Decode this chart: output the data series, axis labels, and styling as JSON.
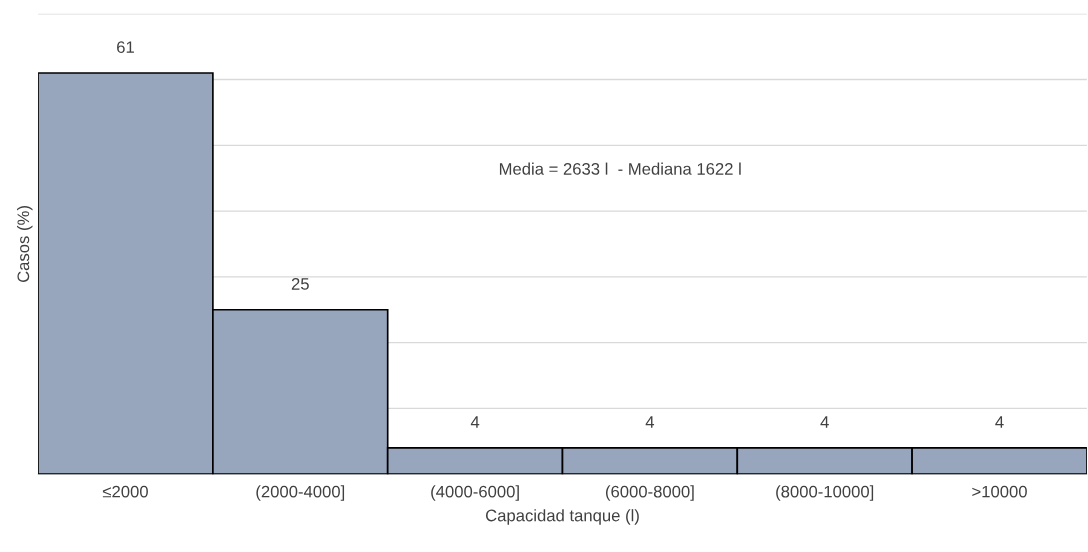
{
  "chart_data": {
    "type": "bar",
    "categories": [
      "≤2000",
      "(2000-4000]",
      "(4000-6000]",
      "(6000-8000]",
      "(8000-10000]",
      ">10000"
    ],
    "values": [
      61,
      25,
      4,
      4,
      4,
      4
    ],
    "color": "#97a6bd",
    "xlabel": "Capacidad tanque (l)",
    "ylabel": "Casos (%)",
    "annotations": [
      "Media = 2633 l  - Mediana 1622 l"
    ],
    "ylim": [
      0,
      70
    ],
    "yticks": [
      {
        "value": 0,
        "label": null
      },
      {
        "value": 10,
        "label": null
      },
      {
        "value": 20,
        "label": null
      },
      {
        "value": 30,
        "label": null
      },
      {
        "value": 40,
        "label": null
      },
      {
        "value": 50,
        "label": null
      },
      {
        "value": 60,
        "label": null
      },
      {
        "value": 70,
        "label": null
      }
    ],
    "grid": "y",
    "data_labels": true,
    "tick_labels": "x",
    "legend": false
  }
}
